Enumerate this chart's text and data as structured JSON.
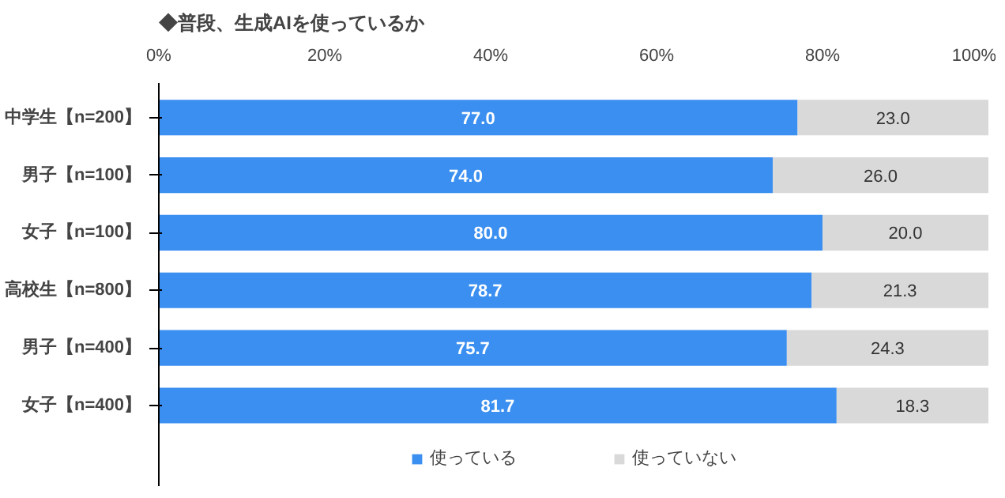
{
  "chart_data": {
    "type": "bar",
    "orientation": "horizontal",
    "stacked": true,
    "title": "◆普段、生成AIを使っているか",
    "categories": [
      "中学生【n=200】",
      "男子【n=100】",
      "女子【n=100】",
      "高校生【n=800】",
      "男子【n=400】",
      "女子【n=400】"
    ],
    "series": [
      {
        "name": "使っている",
        "color": "#3b8ff0",
        "values": [
          77.0,
          74.0,
          80.0,
          78.7,
          75.7,
          81.7
        ],
        "value_labels": [
          "77.0",
          "74.0",
          "80.0",
          "78.7",
          "75.7",
          "81.7"
        ]
      },
      {
        "name": "使っていない",
        "color": "#d9d9d9",
        "values": [
          23.0,
          26.0,
          20.0,
          21.3,
          24.3,
          18.3
        ],
        "value_labels": [
          "23.0",
          "26.0",
          "20.0",
          "21.3",
          "24.3",
          "18.3"
        ]
      }
    ],
    "xlim": [
      0,
      100
    ],
    "xticks": [
      {
        "value": 0,
        "label": "0%"
      },
      {
        "value": 20,
        "label": "20%"
      },
      {
        "value": 40,
        "label": "40%"
      },
      {
        "value": 60,
        "label": "60%"
      },
      {
        "value": 80,
        "label": "80%"
      },
      {
        "value": 100,
        "label": "100%"
      }
    ],
    "grid": false,
    "legend": "bottom"
  }
}
